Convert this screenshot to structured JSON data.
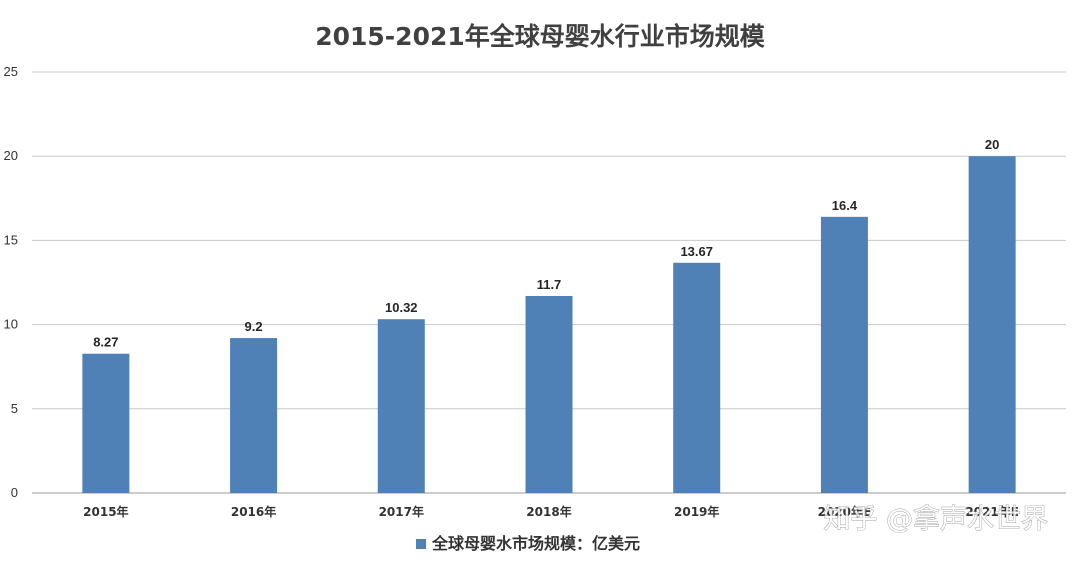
{
  "chart_data": {
    "type": "bar",
    "title": "2015-2021年全球母婴水行业市场规模",
    "categories": [
      "2015年",
      "2016年",
      "2017年",
      "2018年",
      "2019年",
      "2020年E",
      "2021年E"
    ],
    "series": [
      {
        "name": "全球母婴水市场规模：亿美元",
        "values": [
          8.27,
          9.2,
          10.32,
          11.7,
          13.67,
          16.4,
          20
        ],
        "labels": [
          "8.27",
          "9.2",
          "10.32",
          "11.7",
          "13.67",
          "16.4",
          "20"
        ],
        "color": "#4f81b7"
      }
    ],
    "xlabel": "",
    "ylabel": "",
    "ylim": [
      0,
      25
    ],
    "yticks": [
      0,
      5,
      10,
      15,
      20,
      25
    ],
    "grid": true,
    "legend_position": "bottom"
  },
  "watermark": "知乎 @拿声水世界"
}
